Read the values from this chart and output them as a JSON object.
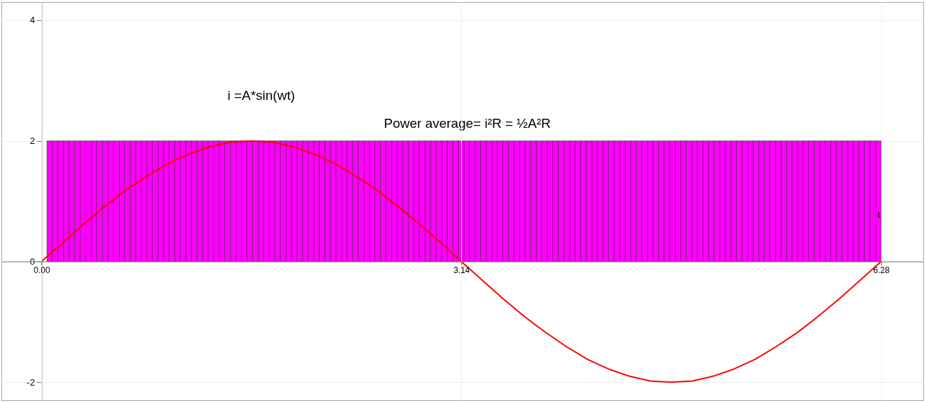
{
  "chart_data": {
    "type": "line",
    "xlabel": "t",
    "annotations": [
      "i =A*sin(wt)",
      "Power average= i²R = ½A²R"
    ],
    "xlim": [
      -0.3,
      6.6
    ],
    "ylim": [
      -2.31,
      4.3
    ],
    "xticks": [
      {
        "value": 0,
        "label": "0.00"
      },
      3.14,
      6.28
    ],
    "yticks": [
      -2,
      0,
      2,
      4
    ],
    "grid": true,
    "series": [
      {
        "type": "bar",
        "color": "#ff00ff",
        "x": [
          0.061,
          0.102,
          0.144,
          0.186,
          0.227,
          0.269,
          0.31,
          0.352,
          0.394,
          0.435,
          0.477,
          0.518,
          0.56,
          0.602,
          0.643,
          0.685,
          0.726,
          0.768,
          0.81,
          0.851,
          0.893,
          0.934,
          0.976,
          1.018,
          1.059,
          1.101,
          1.142,
          1.184,
          1.226,
          1.267,
          1.309,
          1.35,
          1.392,
          1.434,
          1.475,
          1.517,
          1.558,
          1.6,
          1.642,
          1.683,
          1.725,
          1.766,
          1.808,
          1.85,
          1.891,
          1.933,
          1.974,
          2.016,
          2.058,
          2.099,
          2.141,
          2.182,
          2.224,
          2.266,
          2.307,
          2.349,
          2.39,
          2.432,
          2.474,
          2.515,
          2.557,
          2.598,
          2.64,
          2.682,
          2.723,
          2.765,
          2.806,
          2.848,
          2.89,
          2.931,
          2.973,
          3.014,
          3.056,
          3.098,
          3.139,
          3.181,
          3.222,
          3.264,
          3.306,
          3.347,
          3.389,
          3.43,
          3.472,
          3.514,
          3.555,
          3.597,
          3.638,
          3.68,
          3.722,
          3.763,
          3.805,
          3.846,
          3.888,
          3.93,
          3.971,
          4.013,
          4.054,
          4.096,
          4.138,
          4.179,
          4.221,
          4.262,
          4.304,
          4.346,
          4.387,
          4.429,
          4.47,
          4.512,
          4.554,
          4.595,
          4.637,
          4.678,
          4.72,
          4.762,
          4.803,
          4.845,
          4.886,
          4.928,
          4.97,
          5.011,
          5.053,
          5.094,
          5.136,
          5.178,
          5.219,
          5.261,
          5.302,
          5.344,
          5.386,
          5.427,
          5.469,
          5.51,
          5.552,
          5.594,
          5.635,
          5.677,
          5.718,
          5.76,
          5.802,
          5.843,
          5.885,
          5.926,
          5.968,
          6.01,
          6.051,
          6.093,
          6.134,
          6.176,
          6.218,
          6.259
        ],
        "values": [
          2,
          2,
          2,
          2,
          2,
          2,
          2,
          2,
          2,
          2,
          2,
          2,
          2,
          2,
          2,
          2,
          2,
          2,
          2,
          2,
          2,
          2,
          2,
          2,
          2,
          2,
          2,
          2,
          2,
          2,
          2,
          2,
          2,
          2,
          2,
          2,
          2,
          2,
          2,
          2,
          2,
          2,
          2,
          2,
          2,
          2,
          2,
          2,
          2,
          2,
          2,
          2,
          2,
          2,
          2,
          2,
          2,
          2,
          2,
          2,
          2,
          2,
          2,
          2,
          2,
          2,
          2,
          2,
          2,
          2,
          2,
          2,
          2,
          2,
          2,
          2,
          2,
          2,
          2,
          2,
          2,
          2,
          2,
          2,
          2,
          2,
          2,
          2,
          2,
          2,
          2,
          2,
          2,
          2,
          2,
          2,
          2,
          2,
          2,
          2,
          2,
          2,
          2,
          2,
          2,
          2,
          2,
          2,
          2,
          2,
          2,
          2,
          2,
          2,
          2,
          2,
          2,
          2,
          2,
          2,
          2,
          2,
          2,
          2,
          2,
          2,
          2,
          2,
          2,
          2,
          2,
          2,
          2,
          2,
          2,
          2,
          2,
          2,
          2,
          2,
          2,
          2,
          2,
          2,
          2,
          2,
          2,
          2,
          2,
          2
        ]
      },
      {
        "color": "#ff0000",
        "x": [
          0,
          0.157,
          0.314,
          0.471,
          0.628,
          0.785,
          0.942,
          1.099,
          1.256,
          1.413,
          1.57,
          1.727,
          1.884,
          2.041,
          2.198,
          2.355,
          2.512,
          2.669,
          2.826,
          2.983,
          3.14,
          3.297,
          3.454,
          3.611,
          3.768,
          3.925,
          4.082,
          4.239,
          4.396,
          4.553,
          4.71,
          4.867,
          5.024,
          5.181,
          5.338,
          5.495,
          5.652,
          5.809,
          5.966,
          6.123,
          6.28
        ],
        "values": [
          0,
          0.31,
          0.62,
          0.91,
          1.18,
          1.41,
          1.62,
          1.78,
          1.9,
          1.98,
          2.0,
          1.98,
          1.9,
          1.78,
          1.62,
          1.41,
          1.18,
          0.91,
          0.62,
          0.32,
          0.0,
          -0.31,
          -0.62,
          -0.91,
          -1.17,
          -1.41,
          -1.62,
          -1.78,
          -1.9,
          -1.98,
          -2.0,
          -1.98,
          -1.9,
          -1.78,
          -1.62,
          -1.41,
          -1.18,
          -0.91,
          -0.62,
          -0.31,
          0.0
        ]
      }
    ]
  }
}
